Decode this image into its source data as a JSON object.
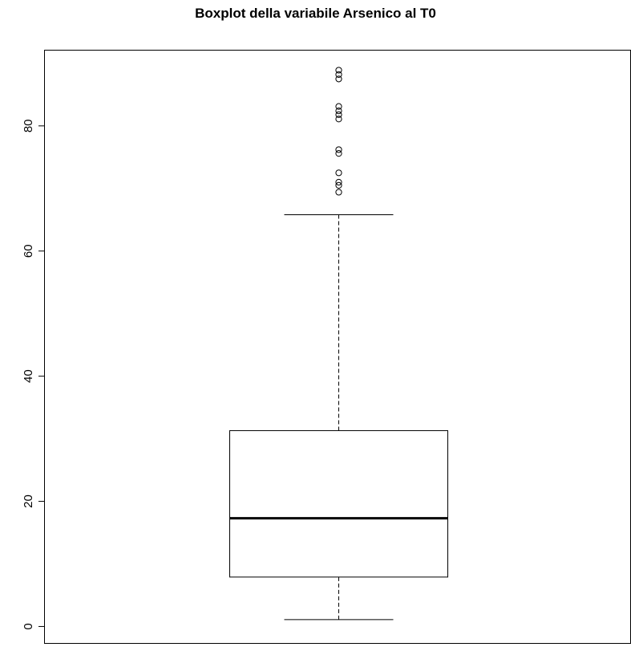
{
  "chart_data": {
    "type": "boxplot",
    "title": "Boxplot della variabile Arsenico al T0",
    "xlabel": "",
    "ylabel": "",
    "ylim": [
      -2.7,
      92.1
    ],
    "yticks": [
      0,
      20,
      40,
      60,
      80
    ],
    "grid": false,
    "box": {
      "whisker_low": 1.1,
      "q1": 7.9,
      "median": 17.3,
      "q3": 31.3,
      "whisker_high": 65.8
    },
    "outliers": [
      69.4,
      70.5,
      71.0,
      72.5,
      75.6,
      76.2,
      81.1,
      81.8,
      82.4,
      83.1,
      87.5,
      88.2,
      88.9
    ]
  }
}
